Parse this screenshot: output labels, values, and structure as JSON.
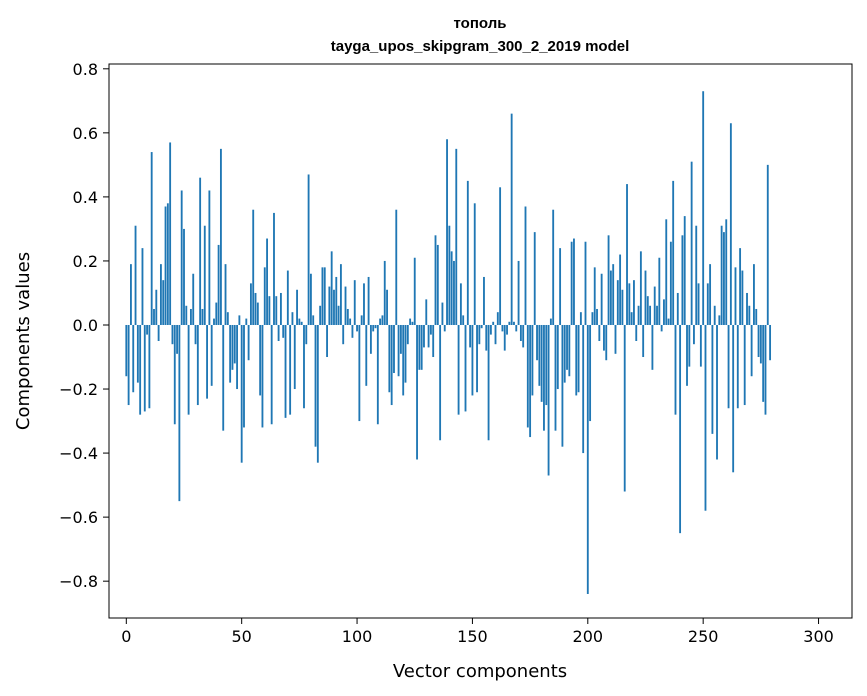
{
  "chart_data": {
    "type": "bar",
    "title": "тополь",
    "subtitle": "tayga_upos_skipgram_300_2_2019 model",
    "xlabel": "Vector components",
    "ylabel": "Components values",
    "xlim": [
      -7.5,
      314.5
    ],
    "ylim": [
      -0.915,
      0.815
    ],
    "xticks": [
      0,
      50,
      100,
      150,
      200,
      250,
      300
    ],
    "xtick_labels": [
      "0",
      "50",
      "100",
      "150",
      "200",
      "250",
      "300"
    ],
    "yticks": [
      -0.8,
      -0.6,
      -0.4,
      -0.2,
      0.0,
      0.2,
      0.4,
      0.6,
      0.8
    ],
    "ytick_labels": [
      "−0.8",
      "−0.6",
      "−0.4",
      "−0.2",
      "0.0",
      "0.2",
      "0.4",
      "0.6",
      "0.8"
    ],
    "bar_color": "#1f77b4",
    "grid": false,
    "legend": "none",
    "values": [
      -0.16,
      -0.25,
      0.19,
      -0.21,
      0.31,
      -0.18,
      -0.28,
      0.24,
      -0.27,
      -0.03,
      -0.26,
      0.54,
      0.05,
      0.11,
      -0.05,
      0.19,
      0.14,
      0.37,
      0.38,
      0.57,
      -0.06,
      -0.31,
      -0.09,
      -0.55,
      0.42,
      0.3,
      0.06,
      -0.28,
      0.05,
      0.16,
      -0.06,
      -0.25,
      0.46,
      0.05,
      0.31,
      -0.23,
      0.42,
      -0.19,
      0.02,
      0.07,
      0.25,
      0.55,
      -0.33,
      0.19,
      0.04,
      -0.18,
      -0.14,
      -0.12,
      -0.2,
      0.03,
      -0.43,
      -0.32,
      0.02,
      -0.11,
      0.13,
      0.36,
      0.1,
      0.07,
      -0.22,
      -0.32,
      0.18,
      0.27,
      0.09,
      -0.31,
      0.35,
      0.09,
      -0.05,
      0.1,
      -0.04,
      -0.29,
      0.17,
      -0.28,
      0.04,
      -0.2,
      0.11,
      0.02,
      0.01,
      -0.26,
      -0.06,
      0.47,
      0.16,
      0.03,
      -0.38,
      -0.43,
      0.06,
      0.18,
      0.18,
      -0.1,
      0.12,
      0.23,
      0.11,
      0.15,
      0.06,
      0.19,
      -0.06,
      0.12,
      0.05,
      0.02,
      -0.04,
      0.14,
      -0.02,
      -0.3,
      0.03,
      0.13,
      -0.19,
      0.15,
      -0.09,
      -0.02,
      -0.01,
      -0.31,
      0.02,
      0.03,
      0.2,
      0.11,
      -0.21,
      -0.25,
      -0.15,
      0.36,
      -0.16,
      -0.09,
      -0.22,
      -0.18,
      -0.06,
      0.02,
      0.01,
      0.21,
      -0.42,
      -0.14,
      -0.14,
      -0.07,
      0.08,
      -0.07,
      -0.03,
      -0.1,
      0.28,
      0.25,
      -0.36,
      0.07,
      -0.02,
      0.58,
      0.31,
      0.23,
      0.2,
      0.55,
      -0.28,
      0.13,
      0.03,
      -0.27,
      0.45,
      -0.07,
      -0.22,
      0.38,
      -0.21,
      -0.06,
      -0.01,
      0.15,
      -0.08,
      -0.36,
      -0.03,
      0.01,
      -0.06,
      0.04,
      0.43,
      -0.02,
      -0.08,
      -0.03,
      0.01,
      0.66,
      0.01,
      -0.02,
      0.2,
      -0.05,
      -0.07,
      0.37,
      -0.32,
      -0.35,
      -0.22,
      0.29,
      -0.11,
      -0.19,
      -0.24,
      -0.33,
      -0.25,
      -0.47,
      0.02,
      0.36,
      -0.33,
      -0.2,
      0.24,
      -0.38,
      -0.18,
      -0.14,
      -0.16,
      0.26,
      0.27,
      -0.22,
      -0.21,
      0.04,
      -0.4,
      0.26,
      -0.84,
      -0.3,
      0.04,
      0.18,
      0.05,
      -0.05,
      0.16,
      -0.08,
      -0.11,
      0.28,
      0.17,
      0.19,
      -0.09,
      0.14,
      0.22,
      0.11,
      -0.52,
      0.44,
      0.13,
      0.04,
      0.14,
      -0.05,
      0.06,
      0.23,
      -0.1,
      0.17,
      0.09,
      0.06,
      -0.14,
      0.12,
      0.06,
      0.21,
      -0.02,
      0.08,
      0.33,
      0.02,
      0.26,
      0.45,
      -0.28,
      0.1,
      -0.65,
      0.28,
      0.34,
      -0.19,
      -0.13,
      0.51,
      -0.06,
      0.31,
      0.13,
      -0.13,
      0.73,
      -0.58,
      0.13,
      0.19,
      -0.34,
      0.06,
      -0.42,
      0.03,
      0.31,
      0.29,
      0.33,
      -0.26,
      0.63,
      -0.46,
      0.18,
      -0.26,
      0.24,
      0.17,
      -0.25,
      0.1,
      0.06,
      -0.16,
      0.19,
      0.05,
      -0.1,
      -0.12,
      -0.24,
      -0.28,
      0.5,
      -0.11
    ]
  }
}
